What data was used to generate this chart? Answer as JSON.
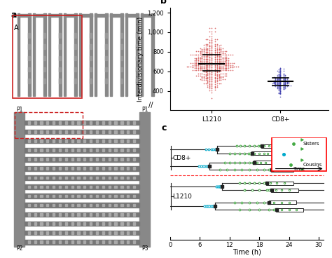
{
  "panel_a_bg_top": "#aaaaaa",
  "panel_a_bg_bot": "#cccccc",
  "panel_b": {
    "L1210_color": "#cc3333",
    "CD8_color": "#3333aa",
    "L1210_mean": 680,
    "L1210_std": 120,
    "L1210_n": 500,
    "CD8_mean": 490,
    "CD8_std": 60,
    "CD8_n": 200,
    "ylim": [
      200,
      1250
    ],
    "yticks": [
      400,
      600,
      800,
      1000,
      1200
    ],
    "ytick_labels": [
      "400",
      "600",
      "800",
      "1,000",
      "1,200"
    ],
    "ylabel": "Interdivisionary time (min)",
    "xlabel_L1210": "L1210",
    "xlabel_CD8": "CD8+"
  },
  "panel_c": {
    "cyan_color": "#00aacc",
    "green_color": "#44aa44",
    "dark_color": "#222222",
    "xlabel": "Time (h)",
    "xticks": [
      0,
      6,
      12,
      18,
      24,
      30
    ]
  }
}
